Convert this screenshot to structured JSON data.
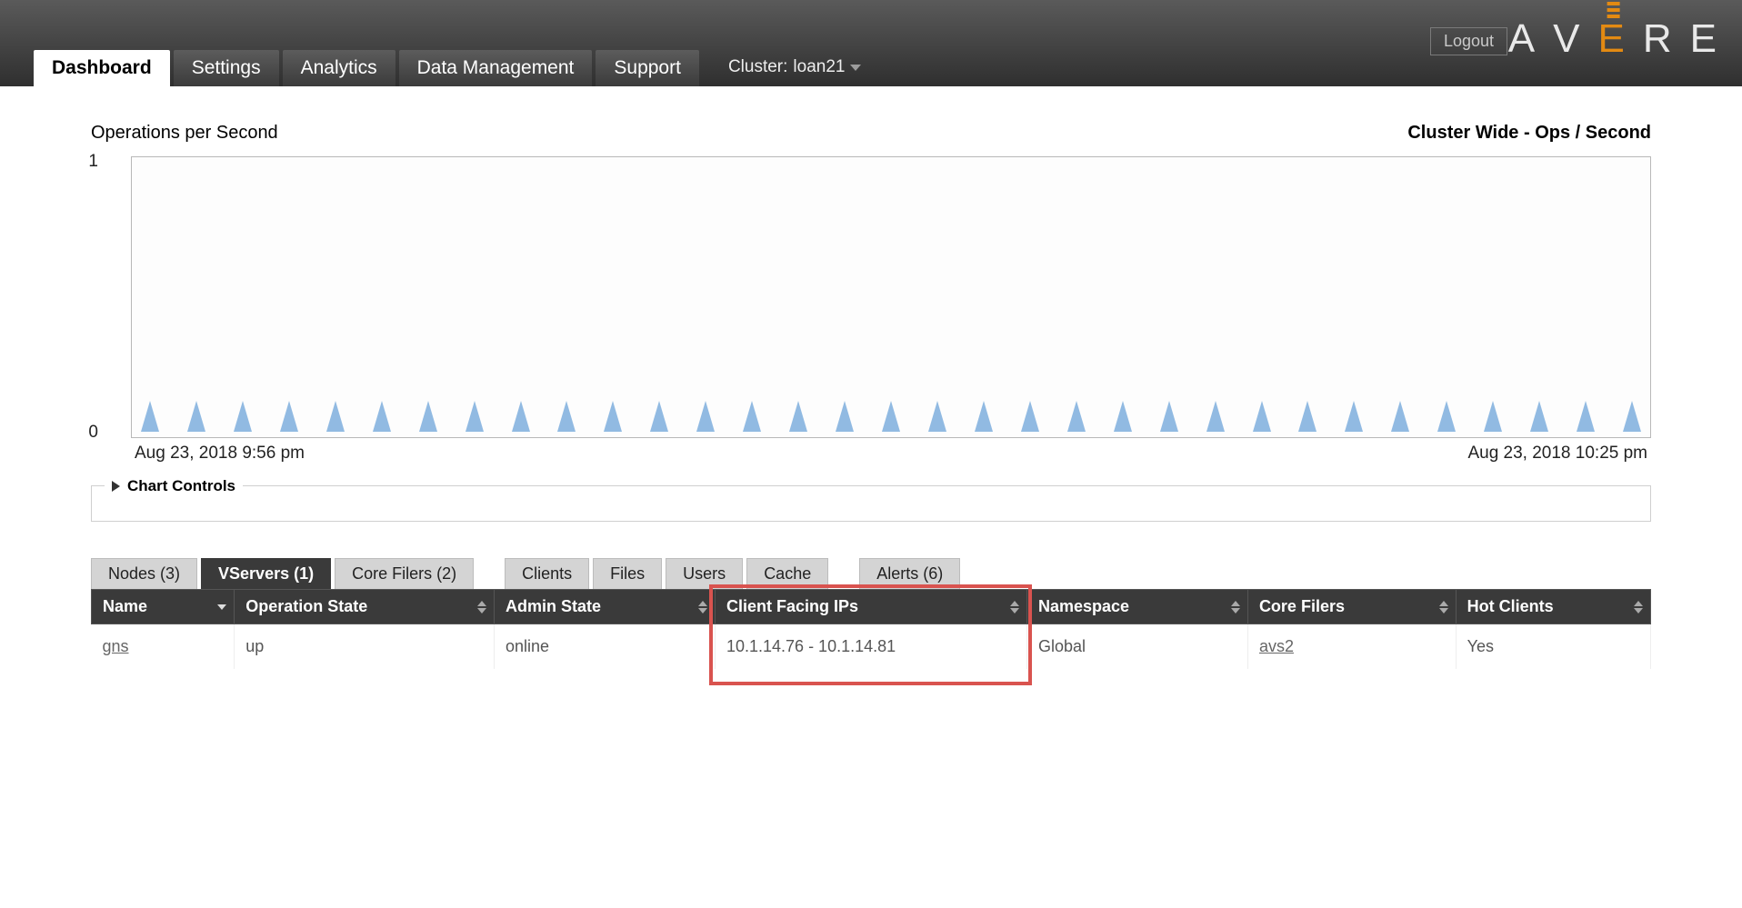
{
  "header": {
    "logout": "Logout",
    "brand": {
      "a": "A",
      "v": "V",
      "e": "E",
      "r": "R",
      "e2": "E"
    },
    "tabs": [
      {
        "label": "Dashboard",
        "active": true
      },
      {
        "label": "Settings",
        "active": false
      },
      {
        "label": "Analytics",
        "active": false
      },
      {
        "label": "Data Management",
        "active": false
      },
      {
        "label": "Support",
        "active": false
      }
    ],
    "cluster_label": "Cluster:",
    "cluster_name": "loan21"
  },
  "chart": {
    "title_left": "Operations per Second",
    "title_right": "Cluster Wide - Ops / Second",
    "ylim": [
      0,
      1
    ],
    "y_ticks": [
      {
        "label": "1",
        "pos_pct": 0
      },
      {
        "label": "0",
        "pos_pct": 100
      }
    ],
    "x_start": "Aug 23, 2018 9:56 pm",
    "x_end": "Aug 23, 2018 10:25 pm",
    "spike_count": 33,
    "spike_color": "#8bb6e0",
    "border_color": "#b8b8b8",
    "background_color": "#fdfdfd",
    "controls_label": "Chart Controls"
  },
  "subtabs": {
    "groupA": [
      {
        "label": "Nodes (3)",
        "active": false
      },
      {
        "label": "VServers (1)",
        "active": true
      },
      {
        "label": "Core Filers (2)",
        "active": false
      }
    ],
    "groupB": [
      {
        "label": "Clients",
        "active": false
      },
      {
        "label": "Files",
        "active": false
      },
      {
        "label": "Users",
        "active": false
      },
      {
        "label": "Cache",
        "active": false
      }
    ],
    "groupC": [
      {
        "label": "Alerts (6)",
        "active": false
      }
    ]
  },
  "vservers_table": {
    "columns": [
      {
        "label": "Name",
        "sort": "desc"
      },
      {
        "label": "Operation State",
        "sort": "both"
      },
      {
        "label": "Admin State",
        "sort": "both"
      },
      {
        "label": "Client Facing IPs",
        "sort": "both"
      },
      {
        "label": "Namespace",
        "sort": "both"
      },
      {
        "label": "Core Filers",
        "sort": "both"
      },
      {
        "label": "Hot Clients",
        "sort": "both"
      }
    ],
    "rows": [
      {
        "name": "gns",
        "operation_state": "up",
        "admin_state": "online",
        "client_facing_ips": "10.1.14.76 - 10.1.14.81",
        "namespace": "Global",
        "core_filers": "avs2",
        "hot_clients": "Yes"
      }
    ],
    "highlight_column_index": 3,
    "highlight_color": "#d9534f"
  }
}
